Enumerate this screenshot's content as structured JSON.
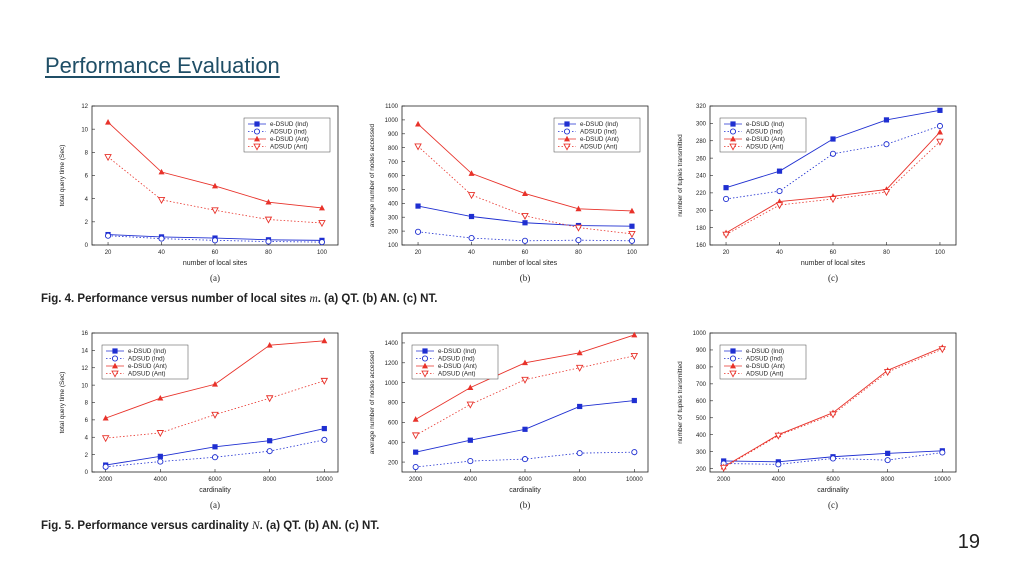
{
  "slide": {
    "title": "Performance Evaluation",
    "page_number": "19"
  },
  "captions": [
    {
      "text": "Fig. 4. Performance versus number of local sites ",
      "sym": "m",
      "rest": ". (a) QT. (b) AN. (c) NT."
    },
    {
      "text": "Fig. 5. Performance versus cardinality ",
      "sym": "N",
      "rest": ". (a) QT. (b) AN. (c) NT."
    }
  ],
  "colors": {
    "blue": "#1f2fd1",
    "red": "#e8322a"
  },
  "chart_data": [
    {
      "type": "line",
      "panel": "(a)",
      "xlabel": "number of local sites",
      "ylabel": "total query time (Sec)",
      "x": [
        20,
        40,
        60,
        80,
        100
      ],
      "xticks": [
        20,
        40,
        60,
        80,
        100
      ],
      "xlim": [
        14,
        106
      ],
      "ylim": [
        0,
        12
      ],
      "yticks": [
        0,
        2,
        4,
        6,
        8,
        10,
        12
      ],
      "legend_position": "top-right",
      "series": [
        {
          "name": "e-DSUD (Ind)",
          "values": [
            0.9,
            0.7,
            0.6,
            0.45,
            0.4
          ]
        },
        {
          "name": "ADSUD (Ind)",
          "values": [
            0.8,
            0.55,
            0.4,
            0.3,
            0.25
          ]
        },
        {
          "name": "e-DSUD (Ant)",
          "values": [
            10.6,
            6.3,
            5.1,
            3.7,
            3.2
          ]
        },
        {
          "name": "ADSUD (Ant)",
          "values": [
            7.6,
            3.9,
            3.0,
            2.2,
            1.9
          ]
        }
      ]
    },
    {
      "type": "line",
      "panel": "(b)",
      "xlabel": "number of local sites",
      "ylabel": "average number of nodes accessed",
      "x": [
        20,
        40,
        60,
        80,
        100
      ],
      "xticks": [
        20,
        40,
        60,
        80,
        100
      ],
      "xlim": [
        14,
        106
      ],
      "ylim": [
        100,
        1100
      ],
      "yticks": [
        100,
        200,
        300,
        400,
        500,
        600,
        700,
        800,
        900,
        1000,
        1100
      ],
      "legend_position": "top-right",
      "series": [
        {
          "name": "e-DSUD (Ind)",
          "values": [
            380,
            305,
            260,
            240,
            235
          ]
        },
        {
          "name": "ADSUD (Ind)",
          "values": [
            195,
            150,
            130,
            135,
            130
          ]
        },
        {
          "name": "e-DSUD (Ant)",
          "values": [
            970,
            615,
            470,
            360,
            345
          ]
        },
        {
          "name": "ADSUD (Ant)",
          "values": [
            810,
            460,
            310,
            225,
            180
          ]
        }
      ]
    },
    {
      "type": "line",
      "panel": "(c)",
      "xlabel": "number of local sites",
      "ylabel": "number of tuples transmitted",
      "x": [
        20,
        40,
        60,
        80,
        100
      ],
      "xticks": [
        20,
        40,
        60,
        80,
        100
      ],
      "xlim": [
        14,
        106
      ],
      "ylim": [
        160,
        320
      ],
      "yticks": [
        160,
        180,
        200,
        220,
        240,
        260,
        280,
        300,
        320
      ],
      "legend_position": "top-left",
      "series": [
        {
          "name": "e-DSUD (Ind)",
          "values": [
            226,
            245,
            282,
            304,
            315
          ]
        },
        {
          "name": "ADSUD (Ind)",
          "values": [
            213,
            222,
            265,
            276,
            297
          ]
        },
        {
          "name": "e-DSUD (Ant)",
          "values": [
            174,
            210,
            216,
            224,
            290
          ]
        },
        {
          "name": "ADSUD (Ant)",
          "values": [
            172,
            206,
            213,
            221,
            279
          ]
        }
      ]
    },
    {
      "type": "line",
      "panel": "(a)",
      "xlabel": "cardinality",
      "ylabel": "total query time (Sec)",
      "x": [
        2000,
        4000,
        6000,
        8000,
        10000
      ],
      "xticks": [
        2000,
        4000,
        6000,
        8000,
        10000
      ],
      "xlim": [
        1500,
        10500
      ],
      "ylim": [
        0,
        16
      ],
      "yticks": [
        0,
        2,
        4,
        6,
        8,
        10,
        12,
        14,
        16
      ],
      "legend_position": "top-left",
      "series": [
        {
          "name": "e-DSUD (Ind)",
          "values": [
            0.8,
            1.8,
            2.9,
            3.6,
            5.0
          ]
        },
        {
          "name": "ADSUD (Ind)",
          "values": [
            0.6,
            1.2,
            1.7,
            2.4,
            3.7
          ]
        },
        {
          "name": "e-DSUD (Ant)",
          "values": [
            6.2,
            8.5,
            10.1,
            14.6,
            15.1
          ]
        },
        {
          "name": "ADSUD (Ant)",
          "values": [
            3.9,
            4.5,
            6.6,
            8.5,
            10.5
          ]
        }
      ]
    },
    {
      "type": "line",
      "panel": "(b)",
      "xlabel": "cardinality",
      "ylabel": "average number of nodes accessed",
      "x": [
        2000,
        4000,
        6000,
        8000,
        10000
      ],
      "xticks": [
        2000,
        4000,
        6000,
        8000,
        10000
      ],
      "xlim": [
        1500,
        10500
      ],
      "ylim": [
        100,
        1500
      ],
      "yticks": [
        200,
        400,
        600,
        800,
        1000,
        1200,
        1400
      ],
      "legend_position": "top-left",
      "series": [
        {
          "name": "e-DSUD (Ind)",
          "values": [
            300,
            420,
            530,
            760,
            820
          ]
        },
        {
          "name": "ADSUD (Ind)",
          "values": [
            150,
            210,
            230,
            290,
            300
          ]
        },
        {
          "name": "e-DSUD (Ant)",
          "values": [
            630,
            950,
            1200,
            1300,
            1480
          ]
        },
        {
          "name": "ADSUD (Ant)",
          "values": [
            470,
            780,
            1030,
            1150,
            1270
          ]
        }
      ]
    },
    {
      "type": "line",
      "panel": "(c)",
      "xlabel": "cardinality",
      "ylabel": "number of tuples transmitted",
      "x": [
        2000,
        4000,
        6000,
        8000,
        10000
      ],
      "xticks": [
        2000,
        4000,
        6000,
        8000,
        10000
      ],
      "xlim": [
        1500,
        10500
      ],
      "ylim": [
        180,
        1000
      ],
      "yticks": [
        200,
        300,
        400,
        500,
        600,
        700,
        800,
        900,
        1000
      ],
      "legend_position": "top-left",
      "series": [
        {
          "name": "e-DSUD (Ind)",
          "values": [
            245,
            240,
            270,
            290,
            305
          ]
        },
        {
          "name": "ADSUD (Ind)",
          "values": [
            230,
            225,
            260,
            250,
            295
          ]
        },
        {
          "name": "e-DSUD (Ant)",
          "values": [
            210,
            400,
            530,
            780,
            915
          ]
        },
        {
          "name": "ADSUD (Ant)",
          "values": [
            205,
            395,
            520,
            770,
            905
          ]
        }
      ]
    }
  ]
}
